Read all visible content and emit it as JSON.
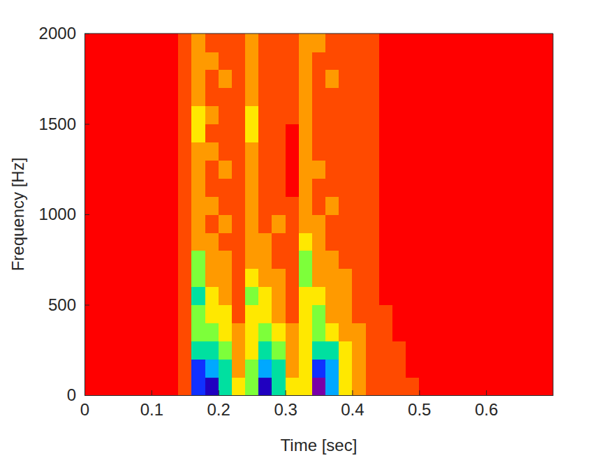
{
  "chart_data": {
    "type": "heatmap",
    "x_label": "Time [sec]",
    "y_label": "Frequency [Hz]",
    "xlim": [
      0,
      0.7
    ],
    "ylim": [
      0,
      2000
    ],
    "xticks": [
      0,
      0.1,
      0.2,
      0.3,
      0.4,
      0.5,
      0.6
    ],
    "yticks": [
      0,
      500,
      1000,
      1500,
      2000
    ],
    "zlim": [
      0,
      9
    ],
    "x_bins": [
      0,
      0.02,
      0.04,
      0.06,
      0.08,
      0.1,
      0.12,
      0.14,
      0.16,
      0.18,
      0.2,
      0.22,
      0.24,
      0.26,
      0.28,
      0.3,
      0.32,
      0.34,
      0.36,
      0.38,
      0.4,
      0.42,
      0.44,
      0.46,
      0.48,
      0.5,
      0.52,
      0.54,
      0.56,
      0.58,
      0.6,
      0.62,
      0.64,
      0.66,
      0.68,
      0.7
    ],
    "y_bins": [
      0,
      100,
      200,
      300,
      400,
      500,
      600,
      700,
      800,
      900,
      1000,
      1100,
      1200,
      1300,
      1400,
      1500,
      1600,
      1700,
      1800,
      1900,
      2000
    ],
    "z": [
      [
        0,
        0,
        0,
        0,
        0,
        0,
        0,
        1,
        7,
        8,
        5,
        3,
        4,
        8,
        5,
        3,
        3,
        9,
        6,
        3,
        2,
        1,
        1,
        1,
        1,
        0,
        0,
        0,
        0,
        0,
        0,
        0,
        0,
        0,
        0
      ],
      [
        0,
        0,
        0,
        0,
        0,
        0,
        0,
        1,
        7,
        6,
        5,
        2,
        4,
        6,
        5,
        2,
        3,
        7,
        6,
        3,
        2,
        1,
        1,
        1,
        0,
        0,
        0,
        0,
        0,
        0,
        0,
        0,
        0,
        0,
        0
      ],
      [
        0,
        0,
        0,
        0,
        0,
        0,
        0,
        1,
        5,
        5,
        4,
        2,
        3,
        5,
        4,
        2,
        3,
        5,
        5,
        3,
        2,
        1,
        1,
        1,
        0,
        0,
        0,
        0,
        0,
        0,
        0,
        0,
        0,
        0,
        0
      ],
      [
        0,
        0,
        0,
        0,
        0,
        0,
        0,
        1,
        4,
        4,
        3,
        2,
        3,
        4,
        3,
        2,
        3,
        4,
        3,
        2,
        2,
        1,
        1,
        0,
        0,
        0,
        0,
        0,
        0,
        0,
        0,
        0,
        0,
        0,
        0
      ],
      [
        0,
        0,
        0,
        0,
        0,
        0,
        0,
        1,
        4,
        3,
        3,
        1,
        3,
        3,
        2,
        1,
        3,
        4,
        2,
        2,
        1,
        1,
        1,
        0,
        0,
        0,
        0,
        0,
        0,
        0,
        0,
        0,
        0,
        0,
        0
      ],
      [
        0,
        0,
        0,
        0,
        0,
        0,
        0,
        1,
        5,
        3,
        2,
        1,
        4,
        3,
        2,
        1,
        3,
        3,
        2,
        2,
        1,
        1,
        0,
        0,
        0,
        0,
        0,
        0,
        0,
        0,
        0,
        0,
        0,
        0,
        0
      ],
      [
        0,
        0,
        0,
        0,
        0,
        0,
        0,
        1,
        4,
        2,
        2,
        1,
        3,
        2,
        2,
        1,
        4,
        2,
        2,
        2,
        1,
        1,
        0,
        0,
        0,
        0,
        0,
        0,
        0,
        0,
        0,
        0,
        0,
        0,
        0
      ],
      [
        0,
        0,
        0,
        0,
        0,
        0,
        0,
        1,
        4,
        2,
        2,
        1,
        2,
        2,
        1,
        1,
        4,
        2,
        2,
        1,
        1,
        1,
        0,
        0,
        0,
        0,
        0,
        0,
        0,
        0,
        0,
        0,
        0,
        0,
        0
      ],
      [
        0,
        0,
        0,
        0,
        0,
        0,
        0,
        1,
        2,
        2,
        1,
        1,
        2,
        2,
        1,
        1,
        3,
        2,
        1,
        1,
        1,
        1,
        0,
        0,
        0,
        0,
        0,
        0,
        0,
        0,
        0,
        0,
        0,
        0,
        0
      ],
      [
        0,
        0,
        0,
        0,
        0,
        0,
        0,
        1,
        2,
        1,
        2,
        1,
        2,
        1,
        2,
        1,
        2,
        2,
        1,
        1,
        1,
        1,
        0,
        0,
        0,
        0,
        0,
        0,
        0,
        0,
        0,
        0,
        0,
        0,
        0
      ],
      [
        0,
        0,
        0,
        0,
        0,
        0,
        0,
        1,
        2,
        2,
        1,
        1,
        2,
        1,
        1,
        1,
        2,
        1,
        2,
        1,
        1,
        1,
        0,
        0,
        0,
        0,
        0,
        0,
        0,
        0,
        0,
        0,
        0,
        0,
        0
      ],
      [
        0,
        0,
        0,
        0,
        0,
        0,
        0,
        1,
        2,
        1,
        1,
        1,
        2,
        1,
        1,
        0,
        2,
        1,
        1,
        1,
        1,
        1,
        0,
        0,
        0,
        0,
        0,
        0,
        0,
        0,
        0,
        0,
        0,
        0,
        0
      ],
      [
        0,
        0,
        0,
        0,
        0,
        0,
        0,
        1,
        2,
        1,
        2,
        1,
        2,
        1,
        1,
        0,
        2,
        2,
        1,
        1,
        1,
        1,
        0,
        0,
        0,
        0,
        0,
        0,
        0,
        0,
        0,
        0,
        0,
        0,
        0
      ],
      [
        0,
        0,
        0,
        0,
        0,
        0,
        0,
        1,
        2,
        2,
        1,
        1,
        2,
        1,
        1,
        0,
        2,
        1,
        1,
        1,
        1,
        1,
        0,
        0,
        0,
        0,
        0,
        0,
        0,
        0,
        0,
        0,
        0,
        0,
        0
      ],
      [
        0,
        0,
        0,
        0,
        0,
        0,
        0,
        1,
        3,
        1,
        1,
        1,
        3,
        1,
        1,
        0,
        2,
        1,
        1,
        1,
        1,
        1,
        0,
        0,
        0,
        0,
        0,
        0,
        0,
        0,
        0,
        0,
        0,
        0,
        0
      ],
      [
        0,
        0,
        0,
        0,
        0,
        0,
        0,
        1,
        3,
        2,
        1,
        1,
        3,
        1,
        1,
        1,
        2,
        1,
        1,
        1,
        1,
        1,
        0,
        0,
        0,
        0,
        0,
        0,
        0,
        0,
        0,
        0,
        0,
        0,
        0
      ],
      [
        0,
        0,
        0,
        0,
        0,
        0,
        0,
        1,
        2,
        1,
        1,
        1,
        2,
        1,
        1,
        1,
        2,
        1,
        1,
        1,
        1,
        1,
        0,
        0,
        0,
        0,
        0,
        0,
        0,
        0,
        0,
        0,
        0,
        0,
        0
      ],
      [
        0,
        0,
        0,
        0,
        0,
        0,
        0,
        1,
        2,
        1,
        2,
        1,
        2,
        1,
        1,
        1,
        2,
        1,
        2,
        1,
        1,
        1,
        0,
        0,
        0,
        0,
        0,
        0,
        0,
        0,
        0,
        0,
        0,
        0,
        0
      ],
      [
        0,
        0,
        0,
        0,
        0,
        0,
        0,
        1,
        2,
        2,
        1,
        1,
        2,
        1,
        1,
        1,
        2,
        1,
        1,
        1,
        1,
        1,
        0,
        0,
        0,
        0,
        0,
        0,
        0,
        0,
        0,
        0,
        0,
        0,
        0
      ],
      [
        0,
        0,
        0,
        0,
        0,
        0,
        0,
        1,
        2,
        1,
        1,
        1,
        2,
        1,
        1,
        1,
        2,
        2,
        1,
        1,
        1,
        1,
        0,
        0,
        0,
        0,
        0,
        0,
        0,
        0,
        0,
        0,
        0,
        0,
        0
      ]
    ]
  }
}
